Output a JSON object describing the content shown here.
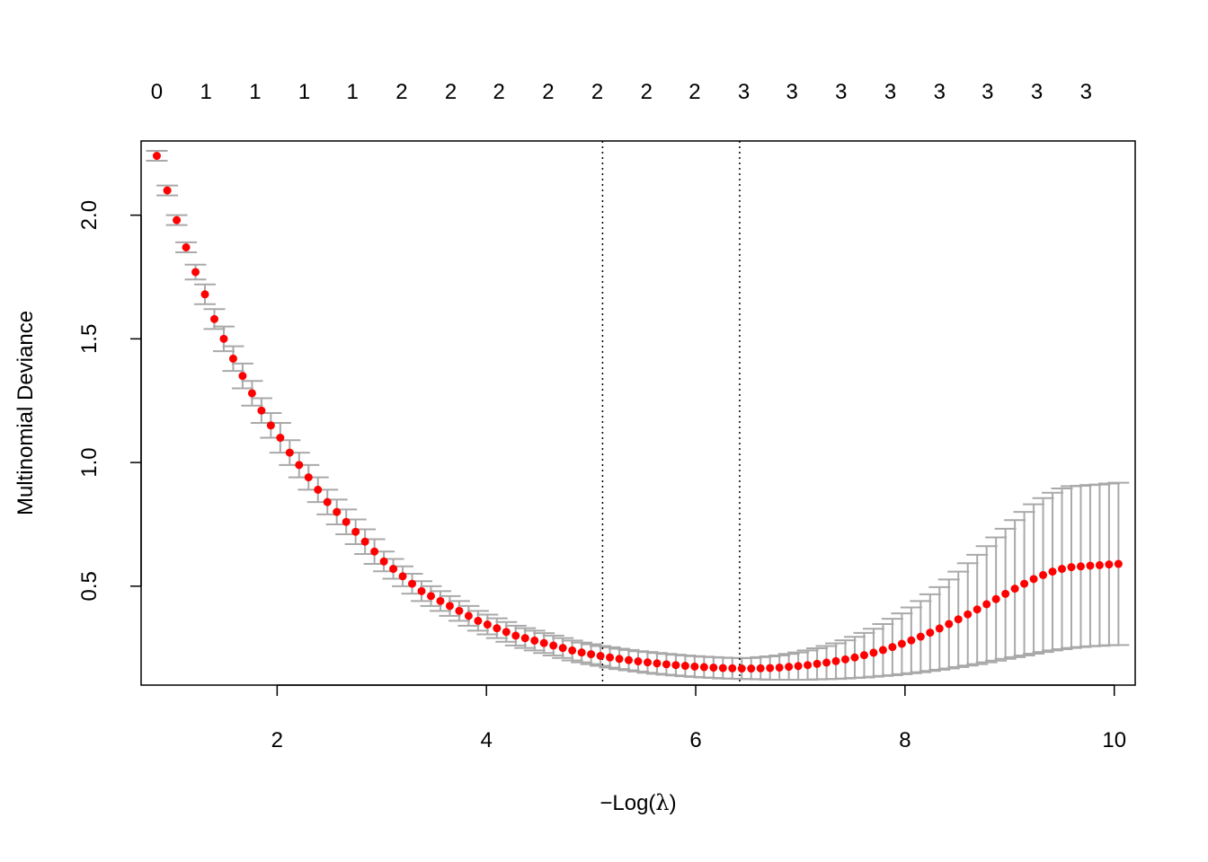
{
  "chart_data": {
    "type": "scatter",
    "xlabel_prefix": "−Log(",
    "xlabel_symbol": "λ",
    "xlabel_suffix": ")",
    "ylabel": "Multinomial Deviance",
    "xlim": [
      0.7,
      10.2
    ],
    "ylim": [
      0.1,
      2.3
    ],
    "x_ticks": [
      2,
      4,
      6,
      8,
      10
    ],
    "y_ticks": [
      "0.5",
      "1.0",
      "1.5",
      "2.0"
    ],
    "top_axis": {
      "x": [
        0.85,
        1.32,
        1.79,
        2.26,
        2.72,
        3.19,
        3.66,
        4.12,
        4.59,
        5.06,
        5.53,
        5.99,
        6.46,
        6.92,
        7.39,
        7.86,
        8.33,
        8.79,
        9.26,
        9.73
      ],
      "labels": [
        "0",
        "1",
        "1",
        "1",
        "1",
        "2",
        "2",
        "2",
        "2",
        "2",
        "2",
        "2",
        "3",
        "3",
        "3",
        "3",
        "3",
        "3",
        "3",
        "3"
      ]
    },
    "vlines": [
      5.11,
      6.42
    ],
    "point_color": "#ff0000",
    "errorbar_color": "#a9a9a9",
    "series": [
      {
        "x": [
          0.85,
          0.95,
          1.04,
          1.13,
          1.22,
          1.31,
          1.4,
          1.49,
          1.58,
          1.67,
          1.76,
          1.85,
          1.94,
          2.03,
          2.12,
          2.21,
          2.3,
          2.39,
          2.48,
          2.57,
          2.66,
          2.75,
          2.84,
          2.93,
          3.02,
          3.11,
          3.2,
          3.29,
          3.38,
          3.47,
          3.56,
          3.65,
          3.74,
          3.83,
          3.92,
          4.01,
          4.1,
          4.19,
          4.28,
          4.37,
          4.46,
          4.55,
          4.64,
          4.73,
          4.82,
          4.91,
          5.0,
          5.09,
          5.18,
          5.27,
          5.36,
          5.45,
          5.54,
          5.63,
          5.72,
          5.81,
          5.9,
          5.99,
          6.08,
          6.17,
          6.26,
          6.35,
          6.44,
          6.53,
          6.62,
          6.71,
          6.8,
          6.89,
          6.98,
          7.07,
          7.16,
          7.25,
          7.34,
          7.43,
          7.52,
          7.61,
          7.7,
          7.79,
          7.88,
          7.97,
          8.06,
          8.15,
          8.24,
          8.33,
          8.42,
          8.51,
          8.6,
          8.69,
          8.78,
          8.87,
          8.96,
          9.05,
          9.14,
          9.23,
          9.32,
          9.41,
          9.5,
          9.59,
          9.68,
          9.77,
          9.86,
          9.95,
          10.04
        ],
        "y": [
          2.24,
          2.1,
          1.98,
          1.87,
          1.77,
          1.68,
          1.58,
          1.5,
          1.42,
          1.35,
          1.28,
          1.21,
          1.15,
          1.1,
          1.04,
          0.99,
          0.94,
          0.89,
          0.84,
          0.8,
          0.76,
          0.72,
          0.68,
          0.64,
          0.6,
          0.57,
          0.54,
          0.51,
          0.48,
          0.46,
          0.44,
          0.42,
          0.4,
          0.38,
          0.36,
          0.345,
          0.33,
          0.315,
          0.3,
          0.29,
          0.28,
          0.27,
          0.26,
          0.25,
          0.24,
          0.232,
          0.225,
          0.218,
          0.212,
          0.206,
          0.201,
          0.196,
          0.192,
          0.188,
          0.184,
          0.181,
          0.178,
          0.175,
          0.173,
          0.171,
          0.169,
          0.168,
          0.167,
          0.167,
          0.168,
          0.169,
          0.171,
          0.174,
          0.177,
          0.181,
          0.186,
          0.191,
          0.197,
          0.204,
          0.212,
          0.221,
          0.231,
          0.242,
          0.254,
          0.267,
          0.281,
          0.296,
          0.312,
          0.329,
          0.347,
          0.366,
          0.386,
          0.406,
          0.427,
          0.448,
          0.469,
          0.49,
          0.51,
          0.529,
          0.545,
          0.559,
          0.57,
          0.577,
          0.58,
          0.583,
          0.585,
          0.588,
          0.59
        ],
        "lower": [
          2.22,
          2.08,
          1.96,
          1.85,
          1.74,
          1.64,
          1.54,
          1.45,
          1.37,
          1.3,
          1.23,
          1.16,
          1.1,
          1.04,
          0.99,
          0.94,
          0.89,
          0.84,
          0.79,
          0.75,
          0.71,
          0.67,
          0.63,
          0.59,
          0.56,
          0.53,
          0.5,
          0.47,
          0.44,
          0.42,
          0.4,
          0.38,
          0.36,
          0.34,
          0.32,
          0.305,
          0.29,
          0.275,
          0.26,
          0.25,
          0.24,
          0.23,
          0.22,
          0.21,
          0.2,
          0.192,
          0.185,
          0.178,
          0.171,
          0.165,
          0.16,
          0.155,
          0.15,
          0.146,
          0.142,
          0.139,
          0.136,
          0.133,
          0.131,
          0.129,
          0.127,
          0.126,
          0.125,
          0.124,
          0.123,
          0.122,
          0.122,
          0.122,
          0.122,
          0.122,
          0.123,
          0.124,
          0.125,
          0.127,
          0.129,
          0.131,
          0.134,
          0.137,
          0.14,
          0.144,
          0.148,
          0.152,
          0.157,
          0.162,
          0.167,
          0.173,
          0.179,
          0.185,
          0.192,
          0.199,
          0.206,
          0.213,
          0.22,
          0.227,
          0.234,
          0.24,
          0.245,
          0.25,
          0.254,
          0.257,
          0.259,
          0.261,
          0.262
        ],
        "upper": [
          2.26,
          2.12,
          2.0,
          1.89,
          1.8,
          1.72,
          1.62,
          1.55,
          1.47,
          1.4,
          1.33,
          1.26,
          1.2,
          1.16,
          1.09,
          1.04,
          0.99,
          0.94,
          0.89,
          0.85,
          0.81,
          0.77,
          0.73,
          0.69,
          0.64,
          0.61,
          0.58,
          0.55,
          0.52,
          0.5,
          0.48,
          0.46,
          0.44,
          0.42,
          0.4,
          0.385,
          0.37,
          0.355,
          0.34,
          0.33,
          0.32,
          0.31,
          0.3,
          0.29,
          0.28,
          0.272,
          0.265,
          0.258,
          0.253,
          0.247,
          0.242,
          0.237,
          0.234,
          0.23,
          0.226,
          0.223,
          0.22,
          0.217,
          0.215,
          0.213,
          0.211,
          0.21,
          0.209,
          0.21,
          0.213,
          0.216,
          0.22,
          0.226,
          0.232,
          0.24,
          0.249,
          0.258,
          0.269,
          0.281,
          0.295,
          0.311,
          0.328,
          0.347,
          0.368,
          0.39,
          0.414,
          0.44,
          0.467,
          0.496,
          0.527,
          0.559,
          0.593,
          0.627,
          0.662,
          0.697,
          0.732,
          0.767,
          0.8,
          0.831,
          0.856,
          0.878,
          0.895,
          0.904,
          0.906,
          0.909,
          0.911,
          0.915,
          0.918
        ]
      }
    ]
  }
}
